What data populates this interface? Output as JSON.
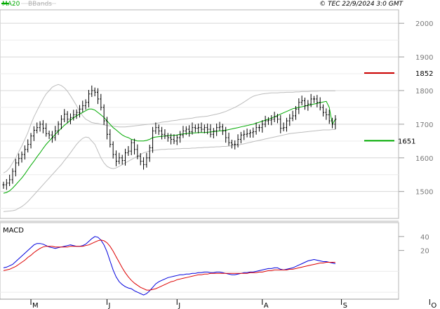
{
  "header": {
    "legend_ma": "MA20",
    "legend_bbands": "BBands",
    "copyright": "© TEC 22/9/2024 3:0 GMT"
  },
  "colors": {
    "ma": "#00aa00",
    "bbands": "#bdbdbd",
    "price": "#000000",
    "macd": "#0000dd",
    "signal": "#dd0000",
    "resistance": "#cc0000",
    "support": "#00aa00",
    "grid": "#d7d7d7"
  },
  "levels": {
    "resistance": {
      "value": 1852,
      "label": "1852"
    },
    "support": {
      "value": 1651,
      "label": "1651"
    }
  },
  "macd_panel": {
    "title": "MACD",
    "y_ticks": [
      {
        "value": 40,
        "label": "40"
      },
      {
        "value": 20,
        "label": "20"
      }
    ],
    "ylim": [
      -50,
      60
    ]
  },
  "chart_data": {
    "type": "line",
    "title": "",
    "xlabel": "",
    "ylabel": "",
    "ylim": [
      1420,
      2040
    ],
    "y_ticks": [
      {
        "value": 1500,
        "label": "1500"
      },
      {
        "value": 1600,
        "label": "1600"
      },
      {
        "value": 1700,
        "label": "1700"
      },
      {
        "value": 1800,
        "label": "1800"
      },
      {
        "value": 1900,
        "label": "1900"
      },
      {
        "value": 2000,
        "label": "2000"
      }
    ],
    "x_ticks": [
      {
        "index": 9,
        "label": "M"
      },
      {
        "index": 34,
        "label": "J"
      },
      {
        "index": 57,
        "label": "J"
      },
      {
        "index": 85,
        "label": "A"
      },
      {
        "index": 111,
        "label": "S"
      },
      {
        "index": 140,
        "label": "O"
      }
    ],
    "series": [
      {
        "name": "Price",
        "values": [
          1520,
          1525,
          1535,
          1560,
          1585,
          1598,
          1610,
          1625,
          1640,
          1665,
          1682,
          1690,
          1700,
          1688,
          1672,
          1668,
          1660,
          1680,
          1700,
          1715,
          1730,
          1715,
          1720,
          1728,
          1735,
          1745,
          1755,
          1765,
          1790,
          1800,
          1795,
          1775,
          1750,
          1710,
          1670,
          1640,
          1610,
          1590,
          1600,
          1592,
          1615,
          1620,
          1645,
          1625,
          1605,
          1590,
          1580,
          1600,
          1630,
          1680,
          1690,
          1680,
          1670,
          1665,
          1660,
          1655,
          1650,
          1660,
          1668,
          1680,
          1685,
          1678,
          1690,
          1688,
          1690,
          1685,
          1690,
          1685,
          1670,
          1680,
          1690,
          1692,
          1680,
          1660,
          1645,
          1640,
          1640,
          1655,
          1668,
          1670,
          1672,
          1675,
          1678,
          1690,
          1690,
          1700,
          1710,
          1712,
          1715,
          1722,
          1715,
          1688,
          1690,
          1710,
          1718,
          1725,
          1745,
          1765,
          1770,
          1755,
          1760,
          1775,
          1775,
          1765,
          1750,
          1735,
          1728,
          1710,
          1700,
          1715
        ]
      },
      {
        "name": "MA20",
        "values": [
          1495,
          1497,
          1502,
          1510,
          1520,
          1530,
          1540,
          1552,
          1565,
          1578,
          1590,
          1603,
          1615,
          1628,
          1640,
          1650,
          1660,
          1670,
          1679,
          1688,
          1697,
          1704,
          1712,
          1719,
          1725,
          1730,
          1735,
          1740,
          1745,
          1745,
          1742,
          1735,
          1728,
          1720,
          1710,
          1700,
          1690,
          1683,
          1675,
          1668,
          1663,
          1660,
          1655,
          1653,
          1650,
          1650,
          1650,
          1652,
          1655,
          1660,
          1662,
          1663,
          1664,
          1665,
          1666,
          1667,
          1667,
          1668,
          1670,
          1671,
          1672,
          1673,
          1674,
          1674,
          1675,
          1675,
          1675,
          1676,
          1677,
          1678,
          1679,
          1680,
          1681,
          1682,
          1684,
          1686,
          1688,
          1690,
          1692,
          1694,
          1696,
          1698,
          1700,
          1703,
          1706,
          1709,
          1712,
          1715,
          1718,
          1722,
          1726,
          1730,
          1734,
          1738,
          1742,
          1746,
          1748,
          1750,
          1752,
          1754,
          1756,
          1758,
          1760,
          1762,
          1764,
          1766,
          1768,
          1750,
          1700,
          1715
        ]
      },
      {
        "name": "BB Upper",
        "values": [
          1555,
          1560,
          1570,
          1585,
          1600,
          1618,
          1635,
          1655,
          1675,
          1700,
          1722,
          1740,
          1758,
          1775,
          1790,
          1800,
          1810,
          1815,
          1818,
          1815,
          1808,
          1798,
          1785,
          1770,
          1755,
          1738,
          1725,
          1715,
          1710,
          1705,
          1703,
          1702,
          1700,
          1698,
          1696,
          1695,
          1694,
          1693,
          1692,
          1692,
          1692,
          1693,
          1694,
          1695,
          1696,
          1697,
          1698,
          1699,
          1700,
          1701,
          1702,
          1704,
          1706,
          1707,
          1708,
          1710,
          1711,
          1712,
          1714,
          1715,
          1716,
          1717,
          1718,
          1720,
          1721,
          1722,
          1723,
          1724,
          1726,
          1728,
          1730,
          1732,
          1735,
          1738,
          1742,
          1746,
          1750,
          1755,
          1760,
          1766,
          1772,
          1778,
          1783,
          1786,
          1788,
          1790,
          1791,
          1792,
          1793,
          1793,
          1793,
          1794,
          1794,
          1795,
          1795,
          1795,
          1796,
          1796,
          1797,
          1797,
          1797,
          1798,
          1798,
          1798,
          1799,
          1799,
          1799,
          1799,
          1799,
          1799
        ]
      },
      {
        "name": "BB Lower",
        "values": [
          1440,
          1441,
          1442,
          1443,
          1445,
          1450,
          1455,
          1462,
          1470,
          1480,
          1490,
          1500,
          1510,
          1520,
          1530,
          1540,
          1550,
          1560,
          1570,
          1580,
          1592,
          1603,
          1615,
          1628,
          1640,
          1650,
          1658,
          1662,
          1660,
          1650,
          1640,
          1620,
          1600,
          1585,
          1575,
          1570,
          1568,
          1570,
          1575,
          1580,
          1585,
          1590,
          1595,
          1600,
          1605,
          1610,
          1615,
          1618,
          1620,
          1622,
          1623,
          1624,
          1625,
          1625,
          1626,
          1626,
          1626,
          1627,
          1627,
          1628,
          1628,
          1628,
          1629,
          1629,
          1630,
          1630,
          1631,
          1631,
          1632,
          1632,
          1633,
          1633,
          1634,
          1634,
          1635,
          1636,
          1637,
          1638,
          1640,
          1642,
          1644,
          1646,
          1648,
          1650,
          1652,
          1654,
          1656,
          1658,
          1660,
          1662,
          1664,
          1666,
          1668,
          1670,
          1672,
          1673,
          1674,
          1675,
          1676,
          1677,
          1678,
          1679,
          1680,
          1681,
          1682,
          1683,
          1683,
          1683,
          1684,
          1684
        ]
      },
      {
        "name": "MACD",
        "values": [
          -5,
          -4,
          -2,
          0,
          4,
          8,
          12,
          16,
          20,
          24,
          28,
          30,
          30,
          29,
          27,
          25,
          24,
          23,
          24,
          25,
          26,
          27,
          28,
          27,
          26,
          26,
          27,
          29,
          33,
          37,
          40,
          39,
          35,
          28,
          18,
          5,
          -8,
          -18,
          -25,
          -29,
          -32,
          -34,
          -35,
          -38,
          -40,
          -42,
          -44,
          -42,
          -38,
          -33,
          -28,
          -25,
          -23,
          -21,
          -19,
          -18,
          -17,
          -16,
          -15,
          -15,
          -14,
          -14,
          -13,
          -13,
          -12,
          -12,
          -11,
          -11,
          -12,
          -12,
          -11,
          -11,
          -12,
          -13,
          -14,
          -15,
          -15,
          -14,
          -13,
          -12,
          -12,
          -11,
          -11,
          -10,
          -9,
          -8,
          -7,
          -6,
          -6,
          -5,
          -5,
          -7,
          -8,
          -7,
          -6,
          -5,
          -3,
          -1,
          1,
          3,
          5,
          6,
          7,
          6,
          5,
          4,
          4,
          3,
          2,
          1
        ]
      },
      {
        "name": "Signal",
        "values": [
          -9,
          -8,
          -7,
          -5,
          -3,
          0,
          3,
          6,
          10,
          13,
          17,
          20,
          23,
          25,
          26,
          26,
          26,
          25,
          25,
          25,
          25,
          25,
          26,
          26,
          26,
          26,
          26,
          27,
          28,
          30,
          32,
          34,
          35,
          34,
          31,
          26,
          19,
          11,
          3,
          -5,
          -12,
          -18,
          -23,
          -27,
          -30,
          -33,
          -35,
          -37,
          -37,
          -36,
          -35,
          -33,
          -31,
          -29,
          -27,
          -25,
          -24,
          -22,
          -21,
          -20,
          -19,
          -18,
          -17,
          -16,
          -15,
          -15,
          -14,
          -14,
          -13,
          -13,
          -13,
          -13,
          -13,
          -13,
          -13,
          -13,
          -13,
          -13,
          -13,
          -13,
          -13,
          -12,
          -12,
          -12,
          -11,
          -11,
          -10,
          -9,
          -9,
          -8,
          -8,
          -8,
          -8,
          -8,
          -7,
          -7,
          -6,
          -5,
          -4,
          -3,
          -2,
          -1,
          0,
          1,
          2,
          2,
          3,
          3,
          3,
          3
        ]
      }
    ]
  }
}
